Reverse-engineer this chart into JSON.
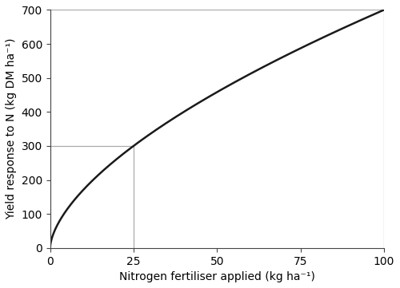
{
  "title": "",
  "xlabel": "Nitrogen fertiliser applied (kg ha⁻¹)",
  "ylabel": "Yield response to N (kg DM ha⁻¹)",
  "xlim": [
    0,
    100
  ],
  "ylim": [
    0,
    700
  ],
  "xticks": [
    0,
    25,
    50,
    75,
    100
  ],
  "yticks": [
    0,
    100,
    200,
    300,
    400,
    500,
    600,
    700
  ],
  "curve_color": "#1a1a1a",
  "curve_linewidth": 1.8,
  "ref_line_color": "#aaaaaa",
  "ref_line_linewidth": 0.9,
  "background_color": "#ffffff",
  "figsize": [
    5.0,
    3.61
  ],
  "dpi": 100,
  "xlabel_fontsize": 10,
  "ylabel_fontsize": 10,
  "tick_labelsize": 10
}
